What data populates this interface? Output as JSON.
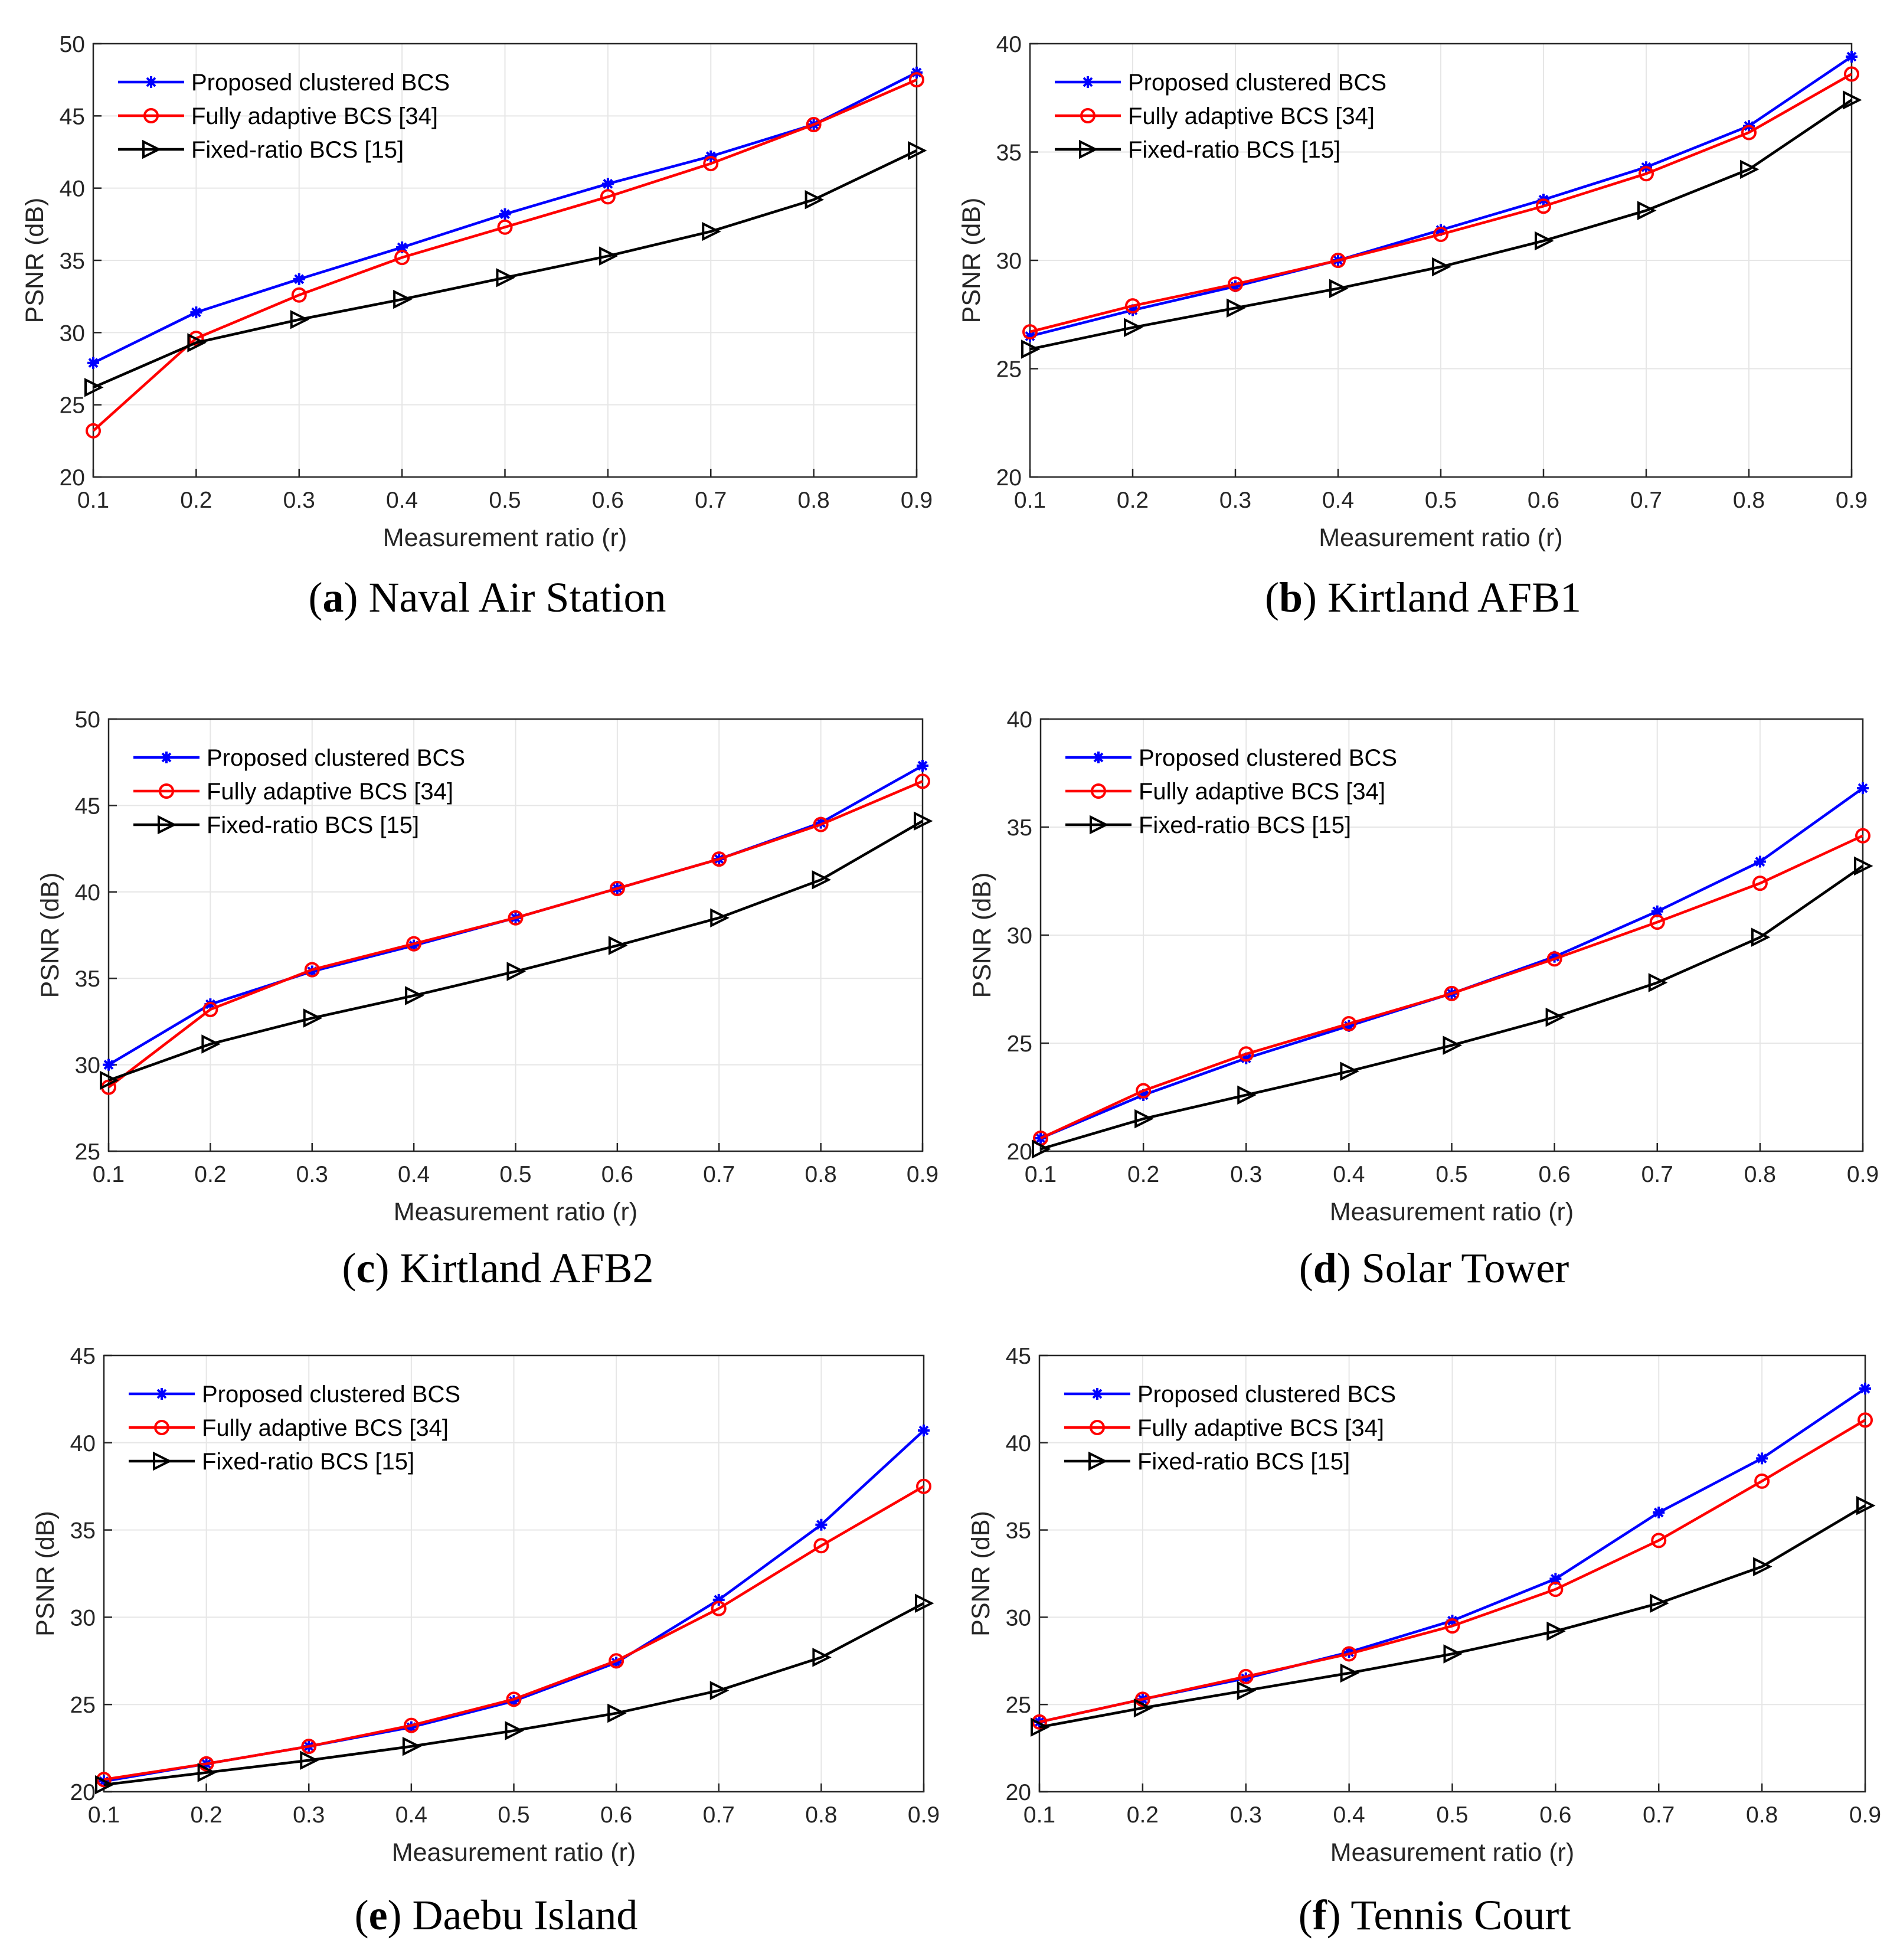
{
  "figure": {
    "description_free": true
  },
  "colors": {
    "proposed": "#0000ff",
    "adaptive": "#ff0000",
    "fixed": "#000000",
    "grid": "#e6e6e6",
    "axis": "#262626"
  },
  "chart_data": [
    {
      "id": "a",
      "type": "line",
      "caption_letter": "a",
      "caption_title": "Naval Air Station",
      "xlabel": "Measurement ratio (r)",
      "ylabel": "PSNR (dB)",
      "xlim": [
        0.1,
        0.9
      ],
      "ylim": [
        20,
        50
      ],
      "xticks": [
        "0.1",
        "0.2",
        "0.3",
        "0.4",
        "0.5",
        "0.6",
        "0.7",
        "0.8",
        "0.9"
      ],
      "yticks": [
        "20",
        "25",
        "30",
        "35",
        "40",
        "45",
        "50"
      ],
      "grid": true,
      "legend": "top-left",
      "x": [
        0.1,
        0.2,
        0.3,
        0.4,
        0.5,
        0.6,
        0.7,
        0.8,
        0.9
      ],
      "series": [
        {
          "name": "Proposed clustered BCS",
          "marker": "star",
          "color_key": "proposed",
          "values": [
            27.9,
            31.4,
            33.7,
            35.9,
            38.2,
            40.3,
            42.2,
            44.4,
            48.0
          ]
        },
        {
          "name": "Fully adaptive BCS [34]",
          "marker": "circle",
          "color_key": "adaptive",
          "values": [
            23.2,
            29.6,
            32.6,
            35.2,
            37.3,
            39.4,
            41.7,
            44.4,
            47.5
          ]
        },
        {
          "name": "Fixed-ratio BCS [15]",
          "marker": "triangle-right",
          "color_key": "fixed",
          "values": [
            26.2,
            29.3,
            30.9,
            32.3,
            33.8,
            35.3,
            37.0,
            39.2,
            42.6
          ]
        }
      ]
    },
    {
      "id": "b",
      "type": "line",
      "caption_letter": "b",
      "caption_title": "Kirtland AFB1",
      "xlabel": "Measurement ratio (r)",
      "ylabel": "PSNR (dB)",
      "xlim": [
        0.1,
        0.9
      ],
      "ylim": [
        20,
        40
      ],
      "xticks": [
        "0.1",
        "0.2",
        "0.3",
        "0.4",
        "0.5",
        "0.6",
        "0.7",
        "0.8",
        "0.9"
      ],
      "yticks": [
        "20",
        "25",
        "30",
        "35",
        "40"
      ],
      "grid": true,
      "legend": "top-left",
      "x": [
        0.1,
        0.2,
        0.3,
        0.4,
        0.5,
        0.6,
        0.7,
        0.8,
        0.9
      ],
      "series": [
        {
          "name": "Proposed clustered BCS",
          "marker": "star",
          "color_key": "proposed",
          "values": [
            26.5,
            27.7,
            28.8,
            30.0,
            31.4,
            32.8,
            34.3,
            36.2,
            39.4
          ]
        },
        {
          "name": "Fully adaptive BCS [34]",
          "marker": "circle",
          "color_key": "adaptive",
          "values": [
            26.7,
            27.9,
            28.9,
            30.0,
            31.2,
            32.5,
            34.0,
            35.9,
            38.6
          ]
        },
        {
          "name": "Fixed-ratio BCS [15]",
          "marker": "triangle-right",
          "color_key": "fixed",
          "values": [
            25.9,
            26.9,
            27.8,
            28.7,
            29.7,
            30.9,
            32.3,
            34.2,
            37.4
          ]
        }
      ]
    },
    {
      "id": "c",
      "type": "line",
      "caption_letter": "c",
      "caption_title": "Kirtland AFB2",
      "xlabel": "Measurement ratio (r)",
      "ylabel": "PSNR (dB)",
      "xlim": [
        0.1,
        0.9
      ],
      "ylim": [
        25,
        50
      ],
      "xticks": [
        "0.1",
        "0.2",
        "0.3",
        "0.4",
        "0.5",
        "0.6",
        "0.7",
        "0.8",
        "0.9"
      ],
      "yticks": [
        "25",
        "30",
        "35",
        "40",
        "45",
        "50"
      ],
      "grid": true,
      "legend": "top-left",
      "x": [
        0.1,
        0.2,
        0.3,
        0.4,
        0.5,
        0.6,
        0.7,
        0.8,
        0.9
      ],
      "series": [
        {
          "name": "Proposed clustered BCS",
          "marker": "star",
          "color_key": "proposed",
          "values": [
            30.0,
            33.5,
            35.4,
            36.9,
            38.5,
            40.2,
            41.9,
            44.0,
            47.3
          ]
        },
        {
          "name": "Fully adaptive BCS [34]",
          "marker": "circle",
          "color_key": "adaptive",
          "values": [
            28.7,
            33.2,
            35.5,
            37.0,
            38.5,
            40.2,
            41.9,
            43.9,
            46.4
          ]
        },
        {
          "name": "Fixed-ratio BCS [15]",
          "marker": "triangle-right",
          "color_key": "fixed",
          "values": [
            29.1,
            31.2,
            32.7,
            34.0,
            35.4,
            36.9,
            38.5,
            40.7,
            44.1
          ]
        }
      ]
    },
    {
      "id": "d",
      "type": "line",
      "caption_letter": "d",
      "caption_title": "Solar Tower",
      "xlabel": "Measurement ratio (r)",
      "ylabel": "PSNR (dB)",
      "xlim": [
        0.1,
        0.9
      ],
      "ylim": [
        20,
        40
      ],
      "xticks": [
        "0.1",
        "0.2",
        "0.3",
        "0.4",
        "0.5",
        "0.6",
        "0.7",
        "0.8",
        "0.9"
      ],
      "yticks": [
        "20",
        "25",
        "30",
        "35",
        "40"
      ],
      "grid": true,
      "legend": "top-left",
      "x": [
        0.1,
        0.2,
        0.3,
        0.4,
        0.5,
        0.6,
        0.7,
        0.8,
        0.9
      ],
      "series": [
        {
          "name": "Proposed clustered BCS",
          "marker": "star",
          "color_key": "proposed",
          "values": [
            20.6,
            22.6,
            24.3,
            25.8,
            27.3,
            29.0,
            31.1,
            33.4,
            36.8
          ]
        },
        {
          "name": "Fully adaptive BCS [34]",
          "marker": "circle",
          "color_key": "adaptive",
          "values": [
            20.6,
            22.8,
            24.5,
            25.9,
            27.3,
            28.9,
            30.6,
            32.4,
            34.6
          ]
        },
        {
          "name": "Fixed-ratio BCS [15]",
          "marker": "triangle-right",
          "color_key": "fixed",
          "values": [
            20.1,
            21.5,
            22.6,
            23.7,
            24.9,
            26.2,
            27.8,
            29.9,
            33.2
          ]
        }
      ]
    },
    {
      "id": "e",
      "type": "line",
      "caption_letter": "e",
      "caption_title": "Daebu Island",
      "xlabel": "Measurement ratio (r)",
      "ylabel": "PSNR (dB)",
      "xlim": [
        0.1,
        0.9
      ],
      "ylim": [
        20,
        45
      ],
      "xticks": [
        "0.1",
        "0.2",
        "0.3",
        "0.4",
        "0.5",
        "0.6",
        "0.7",
        "0.8",
        "0.9"
      ],
      "yticks": [
        "20",
        "25",
        "30",
        "35",
        "40",
        "45"
      ],
      "grid": true,
      "legend": "top-left",
      "x": [
        0.1,
        0.2,
        0.3,
        0.4,
        0.5,
        0.6,
        0.7,
        0.8,
        0.9
      ],
      "series": [
        {
          "name": "Proposed clustered BCS",
          "marker": "star",
          "color_key": "proposed",
          "values": [
            20.6,
            21.6,
            22.6,
            23.7,
            25.2,
            27.4,
            31.0,
            35.3,
            40.7
          ]
        },
        {
          "name": "Fully adaptive BCS [34]",
          "marker": "circle",
          "color_key": "adaptive",
          "values": [
            20.7,
            21.6,
            22.6,
            23.8,
            25.3,
            27.5,
            30.5,
            34.1,
            37.5
          ]
        },
        {
          "name": "Fixed-ratio BCS [15]",
          "marker": "triangle-right",
          "color_key": "fixed",
          "values": [
            20.4,
            21.1,
            21.8,
            22.6,
            23.5,
            24.5,
            25.8,
            27.7,
            30.8
          ]
        }
      ]
    },
    {
      "id": "f",
      "type": "line",
      "caption_letter": "f",
      "caption_title": "Tennis Court",
      "xlabel": "Measurement ratio (r)",
      "ylabel": "PSNR (dB)",
      "xlim": [
        0.1,
        0.9
      ],
      "ylim": [
        20,
        45
      ],
      "xticks": [
        "0.1",
        "0.2",
        "0.3",
        "0.4",
        "0.5",
        "0.6",
        "0.7",
        "0.8",
        "0.9"
      ],
      "yticks": [
        "20",
        "25",
        "30",
        "35",
        "40",
        "45"
      ],
      "grid": true,
      "legend": "top-left",
      "x": [
        0.1,
        0.2,
        0.3,
        0.4,
        0.5,
        0.6,
        0.7,
        0.8,
        0.9
      ],
      "series": [
        {
          "name": "Proposed clustered BCS",
          "marker": "star",
          "color_key": "proposed",
          "values": [
            24.0,
            25.3,
            26.5,
            28.0,
            29.8,
            32.2,
            36.0,
            39.1,
            43.1
          ]
        },
        {
          "name": "Fully adaptive BCS [34]",
          "marker": "circle",
          "color_key": "adaptive",
          "values": [
            24.0,
            25.3,
            26.6,
            27.9,
            29.5,
            31.6,
            34.4,
            37.8,
            41.3
          ]
        },
        {
          "name": "Fixed-ratio BCS [15]",
          "marker": "triangle-right",
          "color_key": "fixed",
          "values": [
            23.7,
            24.8,
            25.8,
            26.8,
            27.9,
            29.2,
            30.8,
            32.9,
            36.4
          ]
        }
      ]
    }
  ]
}
